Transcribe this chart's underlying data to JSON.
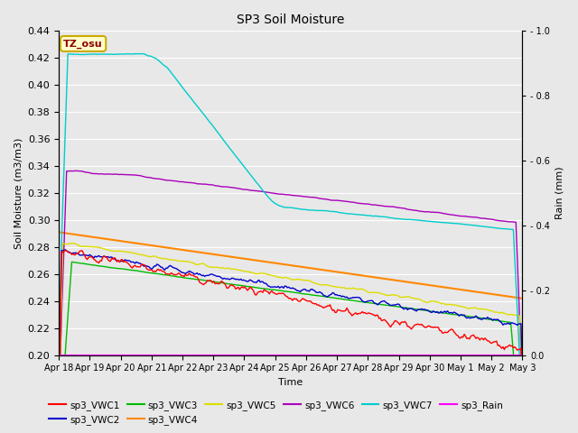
{
  "title": "SP3 Soil Moisture",
  "xlabel": "Time",
  "ylabel_left": "Soil Moisture (m3/m3)",
  "ylabel_right": "Rain (mm)",
  "ylim_left": [
    0.2,
    0.44
  ],
  "ylim_right": [
    0.0,
    1.0
  ],
  "tz_label": "TZ_osu",
  "xtick_labels": [
    "Apr 18",
    "Apr 19",
    "Apr 20",
    "Apr 21",
    "Apr 22",
    "Apr 23",
    "Apr 24",
    "Apr 25",
    "Apr 26",
    "Apr 27",
    "Apr 28",
    "Apr 29",
    "Apr 30",
    "May 1",
    "May 2",
    "May 3"
  ],
  "background_color": "#e8e8e8",
  "grid_color": "#ffffff",
  "colors": {
    "sp3_VWC1": "#ff0000",
    "sp3_VWC2": "#0000cc",
    "sp3_VWC3": "#00bb00",
    "sp3_VWC4": "#ff8800",
    "sp3_VWC5": "#dddd00",
    "sp3_VWC6": "#aa00bb",
    "sp3_VWC7": "#00cccc",
    "sp3_Rain": "#ff00ff"
  },
  "legend_order": [
    "sp3_VWC1",
    "sp3_VWC2",
    "sp3_VWC3",
    "sp3_VWC4",
    "sp3_VWC5",
    "sp3_VWC6",
    "sp3_VWC7",
    "sp3_Rain"
  ]
}
